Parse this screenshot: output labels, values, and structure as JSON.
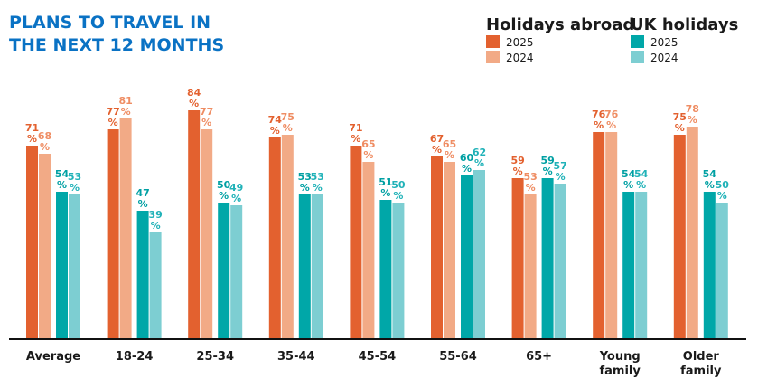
{
  "chart_data": {
    "type": "bar",
    "title": [
      "PLANS TO TRAVEL IN",
      "THE NEXT 12 MONTHS"
    ],
    "categories": [
      [
        "Average"
      ],
      [
        "18-24"
      ],
      [
        "25-34"
      ],
      [
        "35-44"
      ],
      [
        "45-54"
      ],
      [
        "55-64"
      ],
      [
        "65+"
      ],
      [
        "Young",
        "family"
      ],
      [
        "Older",
        "family"
      ]
    ],
    "legend_groups": [
      {
        "heading": "Holidays abroad",
        "items": [
          "2025",
          "2024"
        ]
      },
      {
        "heading": "UK holidays",
        "items": [
          "2025",
          "2024"
        ]
      }
    ],
    "legend_position": "top-right",
    "unit": "%",
    "ylim": [
      0,
      100
    ],
    "grid": false,
    "series": [
      {
        "name": "Holidays abroad 2025",
        "color": "#e3612f",
        "label_color": "#e3612f",
        "values": [
          71,
          77,
          84,
          74,
          71,
          67,
          59,
          76,
          75
        ]
      },
      {
        "name": "Holidays abroad 2024",
        "color": "#f2aa86",
        "label_color": "#ef8d63",
        "values": [
          68,
          81,
          77,
          75,
          65,
          65,
          53,
          76,
          78
        ]
      },
      {
        "name": "UK holidays 2025",
        "color": "#00a7a8",
        "label_color": "#00a0a3",
        "values": [
          54,
          47,
          50,
          53,
          51,
          60,
          59,
          54,
          54
        ]
      },
      {
        "name": "UK holidays 2024",
        "color": "#7dced2",
        "label_color": "#20b2b8",
        "values": [
          53,
          39,
          49,
          53,
          50,
          62,
          57,
          54,
          50
        ]
      }
    ]
  }
}
